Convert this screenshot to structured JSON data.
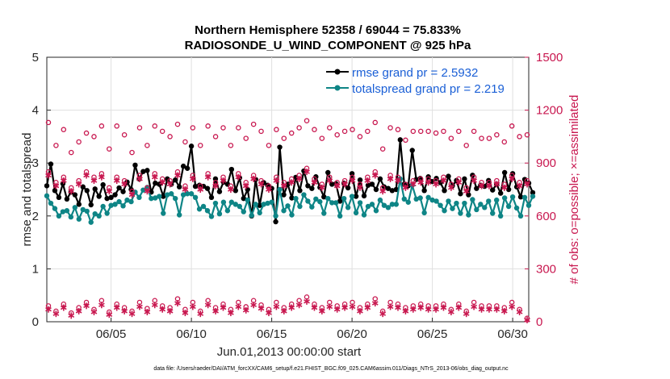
{
  "chart_data": {
    "type": "line",
    "title_line1": "Northern Hemisphere 52358 / 69044 = 75.833%",
    "title_line2": "RADIOSONDE_U_WIND_COMPONENT @ 925 hPa",
    "ylabel_left": "rmse and totalspread",
    "ylabel_right": "# of obs: o=possible; ×=assimilated",
    "xlabel": "Jun.01,2013 00:00:00 start",
    "footer": "data file: /Users/raeder/DAI/ATM_forcXX/CAM6_setup/f.e21.FHIST_BGC.f09_025.CAM6assim.011/Diags_NTrS_2013-06/obs_diag_output.nc",
    "x_range": [
      1,
      31
    ],
    "ylim_left": [
      0,
      5
    ],
    "ylim_right": [
      0,
      1500
    ],
    "x_ticks": [
      {
        "value": 5,
        "label": "06/05"
      },
      {
        "value": 10,
        "label": "06/10"
      },
      {
        "value": 15,
        "label": "06/15"
      },
      {
        "value": 20,
        "label": "06/20"
      },
      {
        "value": 25,
        "label": "06/25"
      },
      {
        "value": 30,
        "label": "06/30"
      }
    ],
    "y_ticks_left": [
      {
        "value": 0,
        "label": "0"
      },
      {
        "value": 1,
        "label": "1"
      },
      {
        "value": 2,
        "label": "2"
      },
      {
        "value": 3,
        "label": "3"
      },
      {
        "value": 4,
        "label": "4"
      },
      {
        "value": 5,
        "label": "5"
      }
    ],
    "y_ticks_right": [
      {
        "value": 0,
        "label": "0"
      },
      {
        "value": 300,
        "label": "300"
      },
      {
        "value": 600,
        "label": "600"
      },
      {
        "value": 900,
        "label": "900"
      },
      {
        "value": 1200,
        "label": "1200"
      },
      {
        "value": 1500,
        "label": "1500"
      }
    ],
    "x_start": 1.0,
    "x_step": 0.25,
    "series": [
      {
        "name": "rmse",
        "legend": "rmse grand pr = 2.5932",
        "color": "#000000",
        "marker": "filled-circle",
        "values": [
          2.57,
          2.98,
          2.48,
          2.35,
          2.61,
          2.32,
          2.45,
          2.4,
          2.22,
          2.55,
          2.48,
          2.21,
          2.51,
          2.37,
          2.59,
          2.33,
          2.35,
          2.4,
          2.53,
          2.46,
          2.64,
          2.5,
          2.96,
          2.7,
          2.84,
          2.86,
          2.45,
          2.62,
          2.6,
          2.37,
          2.7,
          2.6,
          2.68,
          2.55,
          2.94,
          2.9,
          3.32,
          2.56,
          2.58,
          2.56,
          2.52,
          2.35,
          2.7,
          2.46,
          2.64,
          2.6,
          2.88,
          2.48,
          2.72,
          2.33,
          2.5,
          2.0,
          2.69,
          2.2,
          2.63,
          2.58,
          2.52,
          1.89,
          3.3,
          2.4,
          2.6,
          2.34,
          2.73,
          2.48,
          2.85,
          2.57,
          2.52,
          2.74,
          2.54,
          2.36,
          2.82,
          2.6,
          2.61,
          2.28,
          2.62,
          2.53,
          2.8,
          2.37,
          2.68,
          2.38,
          2.58,
          2.6,
          2.5,
          2.7,
          2.55,
          2.52,
          2.48,
          2.5,
          3.44,
          2.6,
          2.57,
          3.24,
          2.69,
          2.71,
          2.48,
          2.74,
          2.65,
          2.71,
          2.63,
          2.48,
          2.75,
          2.57,
          2.67,
          2.42,
          2.7,
          2.4,
          2.77,
          2.52,
          2.58,
          2.56,
          2.67,
          2.49,
          2.6,
          2.43,
          2.82,
          2.5,
          2.8,
          2.55,
          2.36,
          2.69,
          2.62,
          2.44
        ]
      },
      {
        "name": "totalspread",
        "legend": "totalspread grand pr = 2.219",
        "color": "#0e8586",
        "marker": "filled-circle",
        "values": [
          2.38,
          2.24,
          2.14,
          2.0,
          2.08,
          2.1,
          1.98,
          2.16,
          1.94,
          2.12,
          2.09,
          1.88,
          2.04,
          2.0,
          2.18,
          2.05,
          2.2,
          2.22,
          2.27,
          2.19,
          2.3,
          2.27,
          2.45,
          2.35,
          2.49,
          2.54,
          2.33,
          2.34,
          2.37,
          2.05,
          2.4,
          2.42,
          2.33,
          2.02,
          2.4,
          2.42,
          2.42,
          2.35,
          2.13,
          2.18,
          2.1,
          1.99,
          2.24,
          2.04,
          2.26,
          2.1,
          2.26,
          2.22,
          2.18,
          2.08,
          2.3,
          2.01,
          2.22,
          2.06,
          2.22,
          2.24,
          2.26,
          2.0,
          2.5,
          2.1,
          2.19,
          2.02,
          2.33,
          2.18,
          2.4,
          2.28,
          2.17,
          2.32,
          2.27,
          2.05,
          2.33,
          2.25,
          2.25,
          2.0,
          2.33,
          2.16,
          2.37,
          2.06,
          2.25,
          2.02,
          2.18,
          2.22,
          2.1,
          2.3,
          2.2,
          2.16,
          2.22,
          2.22,
          2.7,
          2.32,
          2.26,
          2.58,
          2.32,
          2.34,
          2.06,
          2.35,
          2.3,
          2.28,
          2.2,
          2.1,
          2.28,
          2.14,
          2.24,
          2.05,
          2.24,
          2.02,
          2.31,
          2.12,
          2.22,
          2.16,
          2.28,
          2.05,
          2.3,
          2.0,
          2.34,
          2.18,
          2.36,
          2.15,
          2.0,
          2.35,
          2.2,
          2.37
        ]
      },
      {
        "name": "obs_possible_daily",
        "axis": "right",
        "marker": "open-circle",
        "color": "#c8174f",
        "values": [
          1130,
          1000,
          1090,
          960,
          1020,
          1070,
          1050,
          1110,
          980,
          1110,
          1060,
          960,
          1100,
          1000,
          1110,
          1080,
          1050,
          1120,
          1020,
          1100,
          1000,
          1110,
          1050,
          1100,
          1000,
          1100,
          1040,
          1120,
          1080,
          1000,
          1090,
          1040,
          1070,
          1100,
          1140,
          1090,
          1040,
          1100,
          1060,
          1080,
          1090,
          1050,
          1080,
          1130,
          980,
          1100,
          1090,
          1030,
          1080,
          1080,
          1080,
          1070,
          1080,
          1040,
          1080,
          1000,
          1080,
          1040,
          1040,
          1060,
          1020,
          1110,
          1050,
          1060
        ]
      },
      {
        "name": "obs_possible_synoptic",
        "axis": "right",
        "marker": "open-circle",
        "color": "#c8174f",
        "values": [
          850,
          790,
          820,
          760,
          800,
          850,
          820,
          840,
          760,
          820,
          800,
          740,
          830,
          760,
          840,
          810,
          800,
          850,
          770,
          830,
          770,
          840,
          790,
          820,
          770,
          840,
          790,
          830,
          800,
          770,
          820,
          790,
          810,
          830,
          870,
          810,
          780,
          820,
          790,
          800,
          820,
          780,
          820,
          850,
          760,
          830,
          820,
          780,
          800,
          810,
          810,
          800,
          820,
          780,
          810,
          760,
          820,
          790,
          790,
          800,
          780,
          830,
          790,
          800
        ]
      },
      {
        "name": "obs_assimilated_synoptic",
        "axis": "right",
        "marker": "asterisk",
        "color": "#c8174f",
        "values": [
          830,
          770,
          800,
          740,
          780,
          830,
          800,
          820,
          740,
          800,
          780,
          720,
          810,
          740,
          820,
          790,
          780,
          830,
          750,
          810,
          750,
          820,
          770,
          800,
          750,
          820,
          770,
          810,
          780,
          750,
          800,
          770,
          790,
          810,
          850,
          790,
          760,
          800,
          770,
          780,
          800,
          760,
          800,
          830,
          740,
          810,
          800,
          760,
          780,
          790,
          790,
          780,
          800,
          760,
          790,
          740,
          800,
          770,
          770,
          780,
          760,
          810,
          770,
          780
        ]
      },
      {
        "name": "obs_possible_offsynoptic",
        "axis": "right",
        "marker": "open-circle",
        "color": "#c8174f",
        "values": [
          90,
          60,
          100,
          50,
          80,
          110,
          70,
          120,
          55,
          100,
          80,
          60,
          110,
          75,
          120,
          90,
          80,
          130,
          70,
          110,
          60,
          120,
          80,
          100,
          70,
          110,
          85,
          120,
          95,
          70,
          110,
          80,
          100,
          120,
          140,
          100,
          80,
          110,
          90,
          100,
          110,
          80,
          100,
          130,
          60,
          110,
          100,
          80,
          90,
          100,
          90,
          90,
          100,
          70,
          100,
          60,
          110,
          90,
          90,
          90,
          80,
          110,
          70,
          20
        ]
      },
      {
        "name": "obs_assimilated_offsynoptic",
        "axis": "right",
        "marker": "asterisk",
        "color": "#c8174f",
        "values": [
          70,
          45,
          80,
          35,
          60,
          90,
          55,
          95,
          40,
          80,
          60,
          45,
          85,
          55,
          95,
          70,
          60,
          105,
          50,
          85,
          45,
          95,
          60,
          80,
          50,
          85,
          65,
          95,
          75,
          50,
          85,
          60,
          80,
          95,
          115,
          80,
          60,
          85,
          70,
          80,
          85,
          60,
          80,
          105,
          45,
          85,
          80,
          60,
          70,
          80,
          70,
          70,
          80,
          55,
          80,
          45,
          85,
          70,
          70,
          70,
          60,
          85,
          55,
          10
        ]
      }
    ]
  }
}
